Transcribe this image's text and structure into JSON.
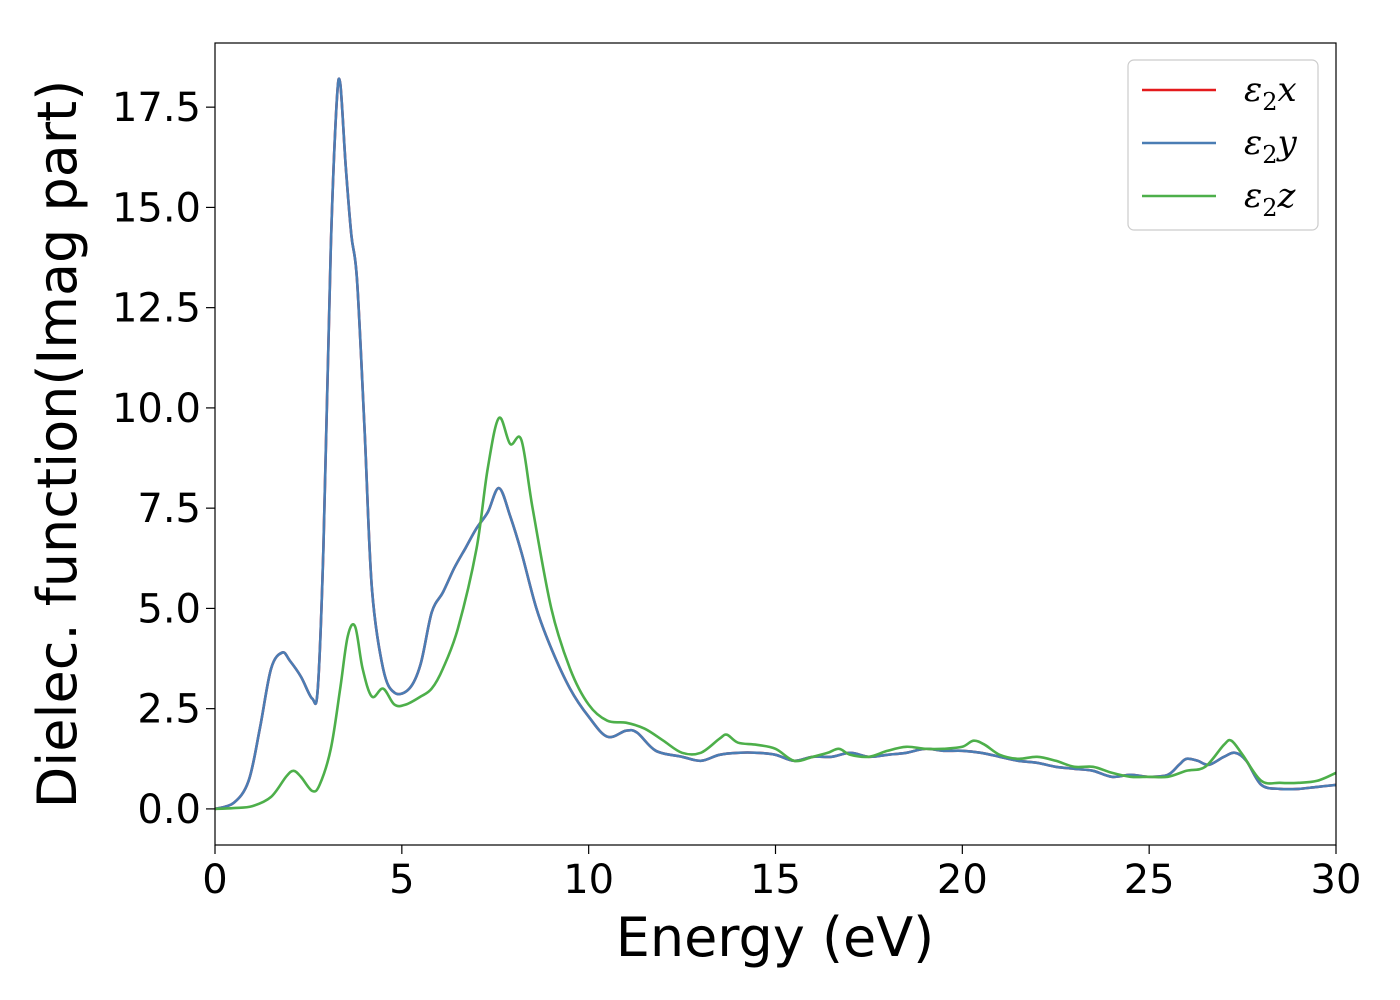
{
  "chart_data": {
    "type": "line",
    "xlabel": "Energy (eV)",
    "ylabel": "Dielec. function(Imag part)",
    "xlim": [
      0,
      30
    ],
    "ylim": [
      -0.9,
      19.1
    ],
    "xticks": [
      0,
      5,
      10,
      15,
      20,
      25,
      30
    ],
    "xtick_labels": [
      "0",
      "5",
      "10",
      "15",
      "20",
      "25",
      "30"
    ],
    "yticks": [
      0,
      2.5,
      5,
      7.5,
      10,
      12.5,
      15,
      17.5
    ],
    "ytick_labels": [
      "0.0",
      "2.5",
      "5.0",
      "7.5",
      "10.0",
      "12.5",
      "15.0",
      "17.5"
    ],
    "grid": false,
    "legend_position": "top-right",
    "series": [
      {
        "name": "ε2x",
        "legend_base": "ε",
        "legend_sub": "2",
        "legend_suffix": "x",
        "color": "#e41a1c",
        "x": [
          0,
          0.5,
          0.9,
          1.2,
          1.5,
          1.8,
          2.0,
          2.3,
          2.6,
          2.75,
          2.9,
          3.1,
          3.25,
          3.35,
          3.5,
          3.65,
          3.8,
          4.0,
          4.2,
          4.5,
          4.8,
          5.2,
          5.5,
          5.8,
          6.1,
          6.4,
          6.7,
          7.0,
          7.3,
          7.6,
          7.9,
          8.2,
          8.6,
          9.0,
          9.5,
          10.0,
          10.5,
          11.0,
          11.3,
          11.8,
          12.5,
          13.0,
          13.5,
          14.0,
          14.5,
          15.0,
          15.5,
          16.0,
          16.5,
          17.0,
          17.5,
          18.0,
          18.5,
          19.0,
          19.5,
          20.0,
          20.5,
          21.0,
          21.5,
          22.0,
          22.5,
          23.0,
          23.5,
          24.0,
          24.5,
          25.0,
          25.5,
          25.8,
          26.0,
          26.3,
          26.6,
          27.0,
          27.3,
          27.6,
          28.0,
          28.5,
          29.0,
          29.5,
          30.0
        ],
        "y": [
          0.0,
          0.15,
          0.7,
          2.0,
          3.5,
          3.9,
          3.7,
          3.3,
          2.75,
          3.0,
          6.5,
          14.0,
          17.5,
          18.1,
          16.0,
          14.3,
          13.2,
          9.5,
          5.5,
          3.5,
          2.9,
          3.0,
          3.6,
          4.9,
          5.4,
          6.0,
          6.5,
          7.0,
          7.4,
          8.0,
          7.3,
          6.4,
          5.0,
          4.0,
          3.0,
          2.3,
          1.8,
          1.95,
          1.9,
          1.45,
          1.3,
          1.2,
          1.35,
          1.4,
          1.4,
          1.35,
          1.2,
          1.3,
          1.3,
          1.4,
          1.3,
          1.35,
          1.4,
          1.5,
          1.45,
          1.45,
          1.4,
          1.3,
          1.2,
          1.15,
          1.05,
          1.0,
          0.95,
          0.8,
          0.85,
          0.8,
          0.85,
          1.1,
          1.25,
          1.2,
          1.1,
          1.3,
          1.4,
          1.2,
          0.6,
          0.5,
          0.5,
          0.55,
          0.6
        ]
      },
      {
        "name": "ε2y",
        "legend_base": "ε",
        "legend_sub": "2",
        "legend_suffix": "y",
        "color": "#4a7db4",
        "x": [
          0,
          0.5,
          0.9,
          1.2,
          1.5,
          1.8,
          2.0,
          2.3,
          2.6,
          2.75,
          2.9,
          3.1,
          3.25,
          3.35,
          3.5,
          3.65,
          3.8,
          4.0,
          4.2,
          4.5,
          4.8,
          5.2,
          5.5,
          5.8,
          6.1,
          6.4,
          6.7,
          7.0,
          7.3,
          7.6,
          7.9,
          8.2,
          8.6,
          9.0,
          9.5,
          10.0,
          10.5,
          11.0,
          11.3,
          11.8,
          12.5,
          13.0,
          13.5,
          14.0,
          14.5,
          15.0,
          15.5,
          16.0,
          16.5,
          17.0,
          17.5,
          18.0,
          18.5,
          19.0,
          19.5,
          20.0,
          20.5,
          21.0,
          21.5,
          22.0,
          22.5,
          23.0,
          23.5,
          24.0,
          24.5,
          25.0,
          25.5,
          25.8,
          26.0,
          26.3,
          26.6,
          27.0,
          27.3,
          27.6,
          28.0,
          28.5,
          29.0,
          29.5,
          30.0
        ],
        "y": [
          0.0,
          0.15,
          0.7,
          2.0,
          3.5,
          3.9,
          3.7,
          3.3,
          2.75,
          3.0,
          6.5,
          14.0,
          17.5,
          18.1,
          16.0,
          14.3,
          13.2,
          9.5,
          5.5,
          3.5,
          2.9,
          3.0,
          3.6,
          4.9,
          5.4,
          6.0,
          6.5,
          7.0,
          7.4,
          8.0,
          7.3,
          6.4,
          5.0,
          4.0,
          3.0,
          2.3,
          1.8,
          1.95,
          1.9,
          1.45,
          1.3,
          1.2,
          1.35,
          1.4,
          1.4,
          1.35,
          1.2,
          1.3,
          1.3,
          1.4,
          1.3,
          1.35,
          1.4,
          1.5,
          1.45,
          1.45,
          1.4,
          1.3,
          1.2,
          1.15,
          1.05,
          1.0,
          0.95,
          0.8,
          0.85,
          0.8,
          0.85,
          1.1,
          1.25,
          1.2,
          1.1,
          1.3,
          1.4,
          1.2,
          0.6,
          0.5,
          0.5,
          0.55,
          0.6
        ]
      },
      {
        "name": "ε2z",
        "legend_base": "ε",
        "legend_sub": "2",
        "legend_suffix": "z",
        "color": "#4daf4a",
        "x": [
          0,
          0.5,
          1.0,
          1.5,
          1.9,
          2.1,
          2.3,
          2.6,
          2.8,
          3.1,
          3.35,
          3.55,
          3.75,
          3.95,
          4.2,
          4.5,
          4.8,
          5.1,
          5.5,
          5.8,
          6.1,
          6.5,
          7.0,
          7.3,
          7.6,
          7.9,
          8.2,
          8.5,
          9.0,
          9.5,
          10.0,
          10.5,
          11.0,
          11.5,
          12.0,
          12.5,
          13.0,
          13.5,
          13.7,
          14.0,
          14.5,
          15.0,
          15.5,
          16.0,
          16.4,
          16.7,
          17.0,
          17.5,
          18.0,
          18.5,
          19.0,
          19.5,
          20.0,
          20.3,
          20.6,
          21.0,
          21.5,
          22.0,
          22.5,
          23.0,
          23.5,
          24.0,
          24.5,
          25.0,
          25.5,
          26.0,
          26.5,
          27.0,
          27.2,
          27.5,
          28.0,
          28.5,
          29.0,
          29.5,
          30.0
        ],
        "y": [
          0.0,
          0.02,
          0.07,
          0.3,
          0.8,
          0.95,
          0.8,
          0.45,
          0.6,
          1.5,
          3.0,
          4.3,
          4.55,
          3.5,
          2.8,
          3.0,
          2.6,
          2.6,
          2.8,
          3.0,
          3.5,
          4.5,
          6.5,
          8.5,
          9.75,
          9.1,
          9.2,
          7.5,
          5.0,
          3.5,
          2.6,
          2.2,
          2.15,
          2.0,
          1.7,
          1.4,
          1.4,
          1.75,
          1.85,
          1.65,
          1.6,
          1.5,
          1.2,
          1.3,
          1.4,
          1.5,
          1.35,
          1.3,
          1.45,
          1.55,
          1.5,
          1.5,
          1.55,
          1.7,
          1.6,
          1.35,
          1.25,
          1.3,
          1.2,
          1.05,
          1.05,
          0.9,
          0.8,
          0.8,
          0.8,
          0.95,
          1.05,
          1.6,
          1.7,
          1.35,
          0.7,
          0.65,
          0.65,
          0.7,
          0.9
        ]
      }
    ]
  }
}
